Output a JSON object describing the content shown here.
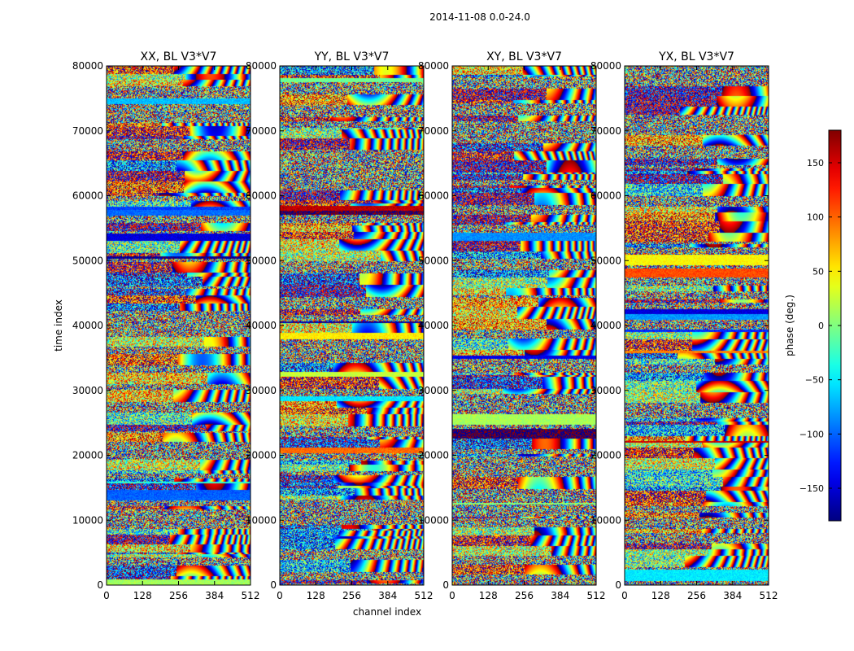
{
  "figure": {
    "suptitle": "2014-11-08 0.0-24.0",
    "colormap": "jet",
    "xlabel": "channel index",
    "ylabel": "time index"
  },
  "chart_data": {
    "type": "heatmap",
    "title": "2014-11-08 0.0-24.0",
    "xlabel": "channel index",
    "ylabel": "time index",
    "xlim": [
      0,
      512
    ],
    "ylim": [
      0,
      80000
    ],
    "xticks": [
      "0",
      "128",
      "256",
      "384",
      "512"
    ],
    "yticks": [
      "0",
      "10000",
      "20000",
      "30000",
      "40000",
      "50000",
      "60000",
      "70000",
      "80000"
    ],
    "panels": [
      {
        "title": "XX, BL V3*V7",
        "polarization": "XX"
      },
      {
        "title": "YY, BL V3*V7",
        "polarization": "YY"
      },
      {
        "title": "XY, BL V3*V7",
        "polarization": "XY"
      },
      {
        "title": "YX, BL V3*V7",
        "polarization": "YX"
      }
    ],
    "colorbar": {
      "label": "phase (deg.)",
      "range": [
        -180,
        180
      ],
      "ticks": [
        "150",
        "100",
        "50",
        "0",
        "−50",
        "−100",
        "−150"
      ],
      "tick_values": [
        150,
        100,
        50,
        0,
        -50,
        -100,
        -150
      ]
    }
  }
}
